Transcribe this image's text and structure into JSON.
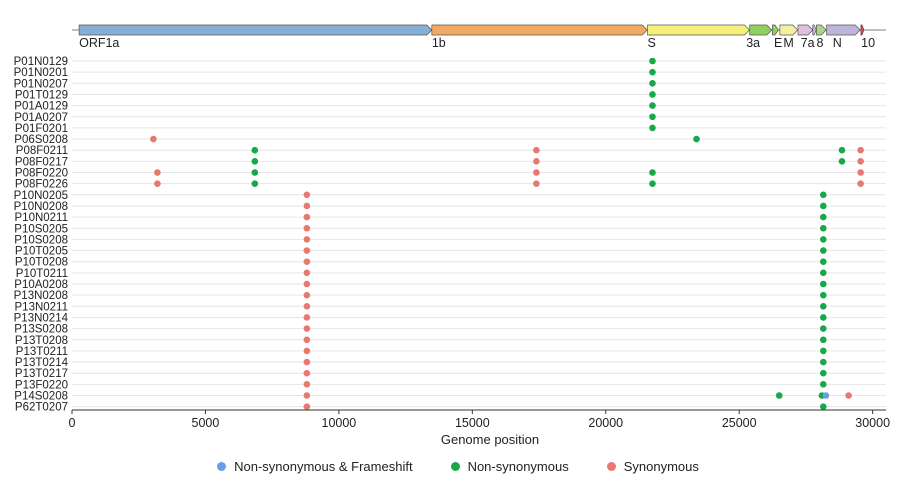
{
  "chart_data": {
    "type": "scatter",
    "title": "",
    "xlabel": "Genome position",
    "ylabel": "",
    "xlim": [
      0,
      30500
    ],
    "xticks": [
      0,
      5000,
      10000,
      15000,
      20000,
      25000,
      30000
    ],
    "grid": "horizontal",
    "legend_placement": "bottom",
    "samples": [
      "P01N0129",
      "P01N0201",
      "P01N0207",
      "P01T0129",
      "P01A0129",
      "P01A0207",
      "P01F0201",
      "P06S0208",
      "P08F0211",
      "P08F0217",
      "P08F0220",
      "P08F0226",
      "P10N0205",
      "P10N0208",
      "P10N0211",
      "P10S0205",
      "P10S0208",
      "P10T0205",
      "P10T0208",
      "P10T0211",
      "P10A0208",
      "P13N0208",
      "P13N0211",
      "P13N0214",
      "P13S0208",
      "P13T0208",
      "P13T0211",
      "P13T0214",
      "P13T0217",
      "P13F0220",
      "P14S0208",
      "P62T0207"
    ],
    "categories": [
      {
        "key": "frameshift",
        "name": "Non-synonymous & Frameshift",
        "color": "#6a9ee6"
      },
      {
        "key": "nonsyn",
        "name": "Non-synonymous",
        "color": "#17a84a"
      },
      {
        "key": "syn",
        "name": "Synonymous",
        "color": "#e9786f"
      }
    ],
    "points": [
      {
        "sample": "P01N0129",
        "x": 21750,
        "type": "nonsyn"
      },
      {
        "sample": "P01N0201",
        "x": 21750,
        "type": "nonsyn"
      },
      {
        "sample": "P01N0207",
        "x": 21750,
        "type": "nonsyn"
      },
      {
        "sample": "P01T0129",
        "x": 21750,
        "type": "nonsyn"
      },
      {
        "sample": "P01A0129",
        "x": 21750,
        "type": "nonsyn"
      },
      {
        "sample": "P01A0207",
        "x": 21750,
        "type": "nonsyn"
      },
      {
        "sample": "P01F0201",
        "x": 21750,
        "type": "nonsyn"
      },
      {
        "sample": "P06S0208",
        "x": 3050,
        "type": "syn"
      },
      {
        "sample": "P06S0208",
        "x": 23400,
        "type": "nonsyn"
      },
      {
        "sample": "P08F0211",
        "x": 6850,
        "type": "nonsyn"
      },
      {
        "sample": "P08F0211",
        "x": 17400,
        "type": "syn"
      },
      {
        "sample": "P08F0211",
        "x": 28850,
        "type": "nonsyn"
      },
      {
        "sample": "P08F0211",
        "x": 29550,
        "type": "syn"
      },
      {
        "sample": "P08F0217",
        "x": 6850,
        "type": "nonsyn"
      },
      {
        "sample": "P08F0217",
        "x": 17400,
        "type": "syn"
      },
      {
        "sample": "P08F0217",
        "x": 28850,
        "type": "nonsyn"
      },
      {
        "sample": "P08F0217",
        "x": 29550,
        "type": "syn"
      },
      {
        "sample": "P08F0220",
        "x": 3200,
        "type": "syn"
      },
      {
        "sample": "P08F0220",
        "x": 6850,
        "type": "nonsyn"
      },
      {
        "sample": "P08F0220",
        "x": 17400,
        "type": "syn"
      },
      {
        "sample": "P08F0220",
        "x": 21750,
        "type": "nonsyn"
      },
      {
        "sample": "P08F0220",
        "x": 29550,
        "type": "syn"
      },
      {
        "sample": "P08F0226",
        "x": 3200,
        "type": "syn"
      },
      {
        "sample": "P08F0226",
        "x": 6850,
        "type": "nonsyn"
      },
      {
        "sample": "P08F0226",
        "x": 17400,
        "type": "syn"
      },
      {
        "sample": "P08F0226",
        "x": 21750,
        "type": "nonsyn"
      },
      {
        "sample": "P08F0226",
        "x": 29550,
        "type": "syn"
      },
      {
        "sample": "P10N0205",
        "x": 8800,
        "type": "syn"
      },
      {
        "sample": "P10N0205",
        "x": 28150,
        "type": "nonsyn"
      },
      {
        "sample": "P10N0208",
        "x": 8800,
        "type": "syn"
      },
      {
        "sample": "P10N0208",
        "x": 28150,
        "type": "nonsyn"
      },
      {
        "sample": "P10N0211",
        "x": 8800,
        "type": "syn"
      },
      {
        "sample": "P10N0211",
        "x": 28150,
        "type": "nonsyn"
      },
      {
        "sample": "P10S0205",
        "x": 8800,
        "type": "syn"
      },
      {
        "sample": "P10S0205",
        "x": 28150,
        "type": "nonsyn"
      },
      {
        "sample": "P10S0208",
        "x": 8800,
        "type": "syn"
      },
      {
        "sample": "P10S0208",
        "x": 28150,
        "type": "nonsyn"
      },
      {
        "sample": "P10T0205",
        "x": 8800,
        "type": "syn"
      },
      {
        "sample": "P10T0205",
        "x": 28150,
        "type": "nonsyn"
      },
      {
        "sample": "P10T0208",
        "x": 8800,
        "type": "syn"
      },
      {
        "sample": "P10T0208",
        "x": 28150,
        "type": "nonsyn"
      },
      {
        "sample": "P10T0211",
        "x": 8800,
        "type": "syn"
      },
      {
        "sample": "P10T0211",
        "x": 28150,
        "type": "nonsyn"
      },
      {
        "sample": "P10A0208",
        "x": 8800,
        "type": "syn"
      },
      {
        "sample": "P10A0208",
        "x": 28150,
        "type": "nonsyn"
      },
      {
        "sample": "P13N0208",
        "x": 8800,
        "type": "syn"
      },
      {
        "sample": "P13N0208",
        "x": 28150,
        "type": "nonsyn"
      },
      {
        "sample": "P13N0211",
        "x": 8800,
        "type": "syn"
      },
      {
        "sample": "P13N0211",
        "x": 28150,
        "type": "nonsyn"
      },
      {
        "sample": "P13N0214",
        "x": 8800,
        "type": "syn"
      },
      {
        "sample": "P13N0214",
        "x": 28150,
        "type": "nonsyn"
      },
      {
        "sample": "P13S0208",
        "x": 8800,
        "type": "syn"
      },
      {
        "sample": "P13S0208",
        "x": 28150,
        "type": "nonsyn"
      },
      {
        "sample": "P13T0208",
        "x": 8800,
        "type": "syn"
      },
      {
        "sample": "P13T0208",
        "x": 28150,
        "type": "nonsyn"
      },
      {
        "sample": "P13T0211",
        "x": 8800,
        "type": "syn"
      },
      {
        "sample": "P13T0211",
        "x": 28150,
        "type": "nonsyn"
      },
      {
        "sample": "P13T0214",
        "x": 8800,
        "type": "syn"
      },
      {
        "sample": "P13T0214",
        "x": 28150,
        "type": "nonsyn"
      },
      {
        "sample": "P13T0217",
        "x": 8800,
        "type": "syn"
      },
      {
        "sample": "P13T0217",
        "x": 28150,
        "type": "nonsyn"
      },
      {
        "sample": "P13F0220",
        "x": 8800,
        "type": "syn"
      },
      {
        "sample": "P13F0220",
        "x": 28150,
        "type": "nonsyn"
      },
      {
        "sample": "P14S0208",
        "x": 8800,
        "type": "syn"
      },
      {
        "sample": "P14S0208",
        "x": 26500,
        "type": "nonsyn"
      },
      {
        "sample": "P14S0208",
        "x": 28100,
        "type": "nonsyn"
      },
      {
        "sample": "P14S0208",
        "x": 28250,
        "type": "frameshift"
      },
      {
        "sample": "P14S0208",
        "x": 29100,
        "type": "syn"
      },
      {
        "sample": "P62T0207",
        "x": 8800,
        "type": "syn"
      },
      {
        "sample": "P62T0207",
        "x": 28150,
        "type": "nonsyn"
      }
    ],
    "genome_track": {
      "features": [
        {
          "label": "ORF1a",
          "start": 266,
          "end": 13483,
          "color": "#86afd4"
        },
        {
          "label": "1b",
          "start": 13483,
          "end": 21555,
          "color": "#f2aa63"
        },
        {
          "label": "S",
          "start": 21563,
          "end": 25384,
          "color": "#f4f07a"
        },
        {
          "label": "3a",
          "start": 25393,
          "end": 26220,
          "color": "#8fd15e"
        },
        {
          "label": "E",
          "start": 26245,
          "end": 26472,
          "color": "#8fd15e"
        },
        {
          "label": "M",
          "start": 26523,
          "end": 27191,
          "color": "#f4f0a2"
        },
        {
          "label": "7a",
          "start": 27202,
          "end": 27759,
          "color": "#dcc1e0"
        },
        {
          "label": "",
          "start": 27756,
          "end": 27887,
          "color": "#c4b7e0"
        },
        {
          "label": "8",
          "start": 27894,
          "end": 28259,
          "color": "#a9d68c"
        },
        {
          "label": "N",
          "start": 28274,
          "end": 29533,
          "color": "#bfb5db"
        },
        {
          "label": "10",
          "start": 29558,
          "end": 29674,
          "color": "#e0453a"
        }
      ],
      "label_offsets": {
        "ORF1a": 0,
        "1b": 0,
        "S": 0,
        "3a": -130,
        "E": 60,
        "M": 130,
        "7a": 100,
        "8": 0,
        "N": 230,
        "10": 10
      }
    }
  }
}
